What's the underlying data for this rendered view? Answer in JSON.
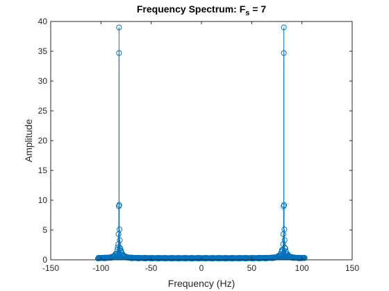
{
  "chart_data": {
    "type": "stem",
    "title": {
      "main": "Frequency Spectrum: F",
      "sub": "s",
      "tail": " = 7"
    },
    "xlabel": "Frequency (Hz)",
    "ylabel": "Amplitude",
    "xlim": [
      -150,
      150
    ],
    "ylim": [
      0,
      40
    ],
    "x_ticks": [
      -150,
      -100,
      -50,
      0,
      50,
      100,
      150
    ],
    "x_tick_labels": [
      "-150",
      "-100",
      "-50",
      "0",
      "50",
      "100",
      "150"
    ],
    "y_ticks": [
      0,
      5,
      10,
      15,
      20,
      25,
      30,
      35,
      40
    ],
    "y_tick_labels": [
      "0",
      "5",
      "10",
      "15",
      "20",
      "25",
      "30",
      "35",
      "40"
    ],
    "grid": false,
    "color": "#0072BD",
    "x_range": [
      -103,
      103
    ],
    "peaks": [
      {
        "x": -82,
        "values": [
          39,
          34.7,
          9.2,
          9.0,
          5.1,
          4.3,
          3.3,
          2.6,
          2.0
        ]
      },
      {
        "x": 82,
        "values": [
          39,
          34.7,
          9.2,
          9.0,
          5.1,
          4.3,
          3.3,
          2.6,
          2.0
        ]
      }
    ],
    "baseline_level": 0.2
  }
}
